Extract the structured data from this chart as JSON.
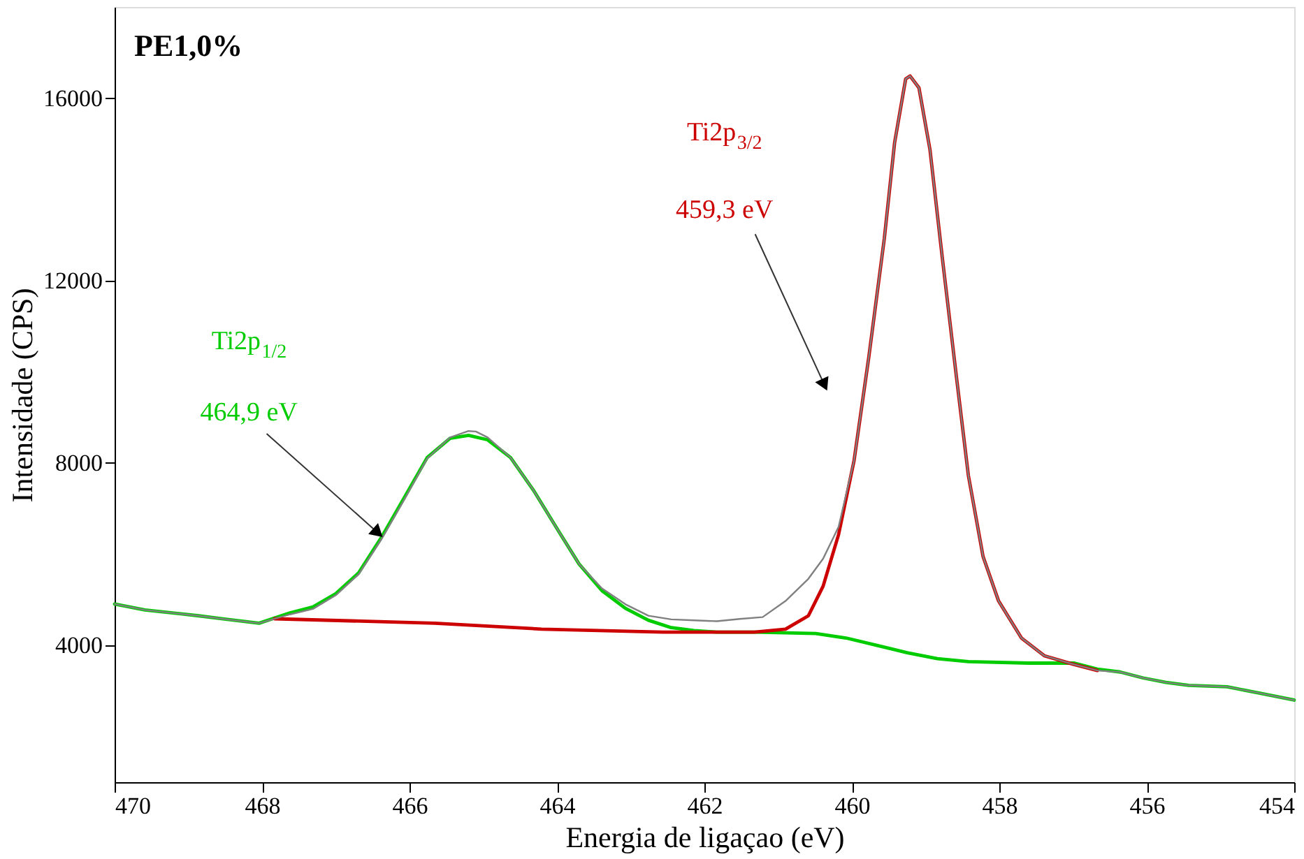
{
  "chart_data": {
    "type": "line",
    "xlabel": "Energia de ligaçao (eV)",
    "ylabel": "Intensidade (CPS)",
    "xlim": [
      470,
      454
    ],
    "ylim": [
      1000,
      18000
    ],
    "xticks": [
      470,
      468,
      466,
      464,
      462,
      460,
      458,
      456,
      454
    ],
    "yticks": [
      4000,
      8000,
      12000,
      16000
    ],
    "grid": false,
    "marker": "none",
    "line_style": "solid",
    "series": [
      {
        "color": "#808080",
        "x": [
          470,
          469.59,
          468.86,
          468.55,
          468.04,
          467.62,
          467.31,
          467.0,
          466.69,
          466.38,
          466.07,
          465.76,
          465.45,
          465.2,
          465.1,
          464.94,
          464.63,
          464.32,
          464.0,
          463.7,
          463.39,
          463.07,
          462.76,
          462.45,
          462.14,
          461.83,
          461.52,
          461.21,
          460.9,
          460.59,
          460.39,
          460.18,
          459.97,
          459.77,
          459.56,
          459.42,
          459.27,
          459.21,
          459.09,
          458.94,
          458.78,
          458.59,
          458.42,
          458.22,
          458.01,
          457.7,
          457.39,
          456.98,
          456.67,
          456.36,
          456.05,
          455.74,
          455.43,
          454.91,
          454.5,
          454.0
        ],
        "values": [
          4908,
          4778,
          4649,
          4584,
          4486,
          4680,
          4800,
          5100,
          5560,
          6330,
          7200,
          8100,
          8560,
          8700,
          8690,
          8560,
          8119,
          7405,
          6562,
          5784,
          5250,
          4900,
          4650,
          4570,
          4550,
          4530,
          4580,
          4620,
          4973,
          5460,
          5900,
          6600,
          8054,
          10324,
          12919,
          15027,
          16422,
          16486,
          16227,
          14865,
          12595,
          10000,
          7730,
          5946,
          4973,
          4162,
          3773,
          3578,
          3449,
          3416,
          3286,
          3189,
          3124,
          3092,
          2962,
          2800
        ]
      },
      {
        "color": "#00cc00",
        "x": [
          470,
          469.59,
          468.86,
          468.55,
          468.04,
          467.62,
          467.31,
          467.0,
          466.69,
          466.38,
          466.07,
          465.76,
          465.45,
          465.2,
          464.94,
          464.63,
          464.32,
          464.0,
          463.7,
          463.39,
          463.07,
          462.76,
          462.45,
          462.14,
          461.83,
          461.32,
          460.49,
          460.08,
          459.66,
          459.25,
          458.84,
          458.42,
          457.6,
          456.98,
          456.67,
          456.36,
          456.05,
          455.74,
          455.43,
          454.91,
          454.5,
          454.0
        ],
        "values": [
          4908,
          4778,
          4649,
          4584,
          4486,
          4713,
          4843,
          5135,
          5590,
          6370,
          7243,
          8119,
          8541,
          8605,
          8508,
          8119,
          7405,
          6562,
          5784,
          5200,
          4811,
          4551,
          4389,
          4324,
          4292,
          4292,
          4259,
          4162,
          4000,
          3838,
          3708,
          3643,
          3611,
          3611,
          3481,
          3416,
          3286,
          3189,
          3124,
          3092,
          2962,
          2800
        ]
      },
      {
        "color": "#cc0000",
        "x": [
          467.83,
          465.66,
          464.21,
          462.56,
          461.32,
          460.9,
          460.59,
          460.39,
          460.18,
          459.97,
          459.77,
          459.56,
          459.42,
          459.27,
          459.21,
          459.09,
          458.94,
          458.78,
          458.59,
          458.42,
          458.22,
          458.01,
          457.7,
          457.39,
          456.98,
          456.67
        ],
        "values": [
          4584,
          4486,
          4357,
          4292,
          4292,
          4357,
          4649,
          5297,
          6432,
          8054,
          10324,
          12919,
          15027,
          16422,
          16486,
          16227,
          14865,
          12595,
          10000,
          7730,
          5946,
          4973,
          4162,
          3773,
          3578,
          3449
        ]
      }
    ],
    "annotations": [
      "PE1,0%",
      "Ti2p$_{3/2}$",
      "459,3 eV",
      "Ti2p$_{1/2}$",
      {
        "text": "464,9 eV",
        "x": 466.45,
        "y": 6500
      }
    ]
  }
}
